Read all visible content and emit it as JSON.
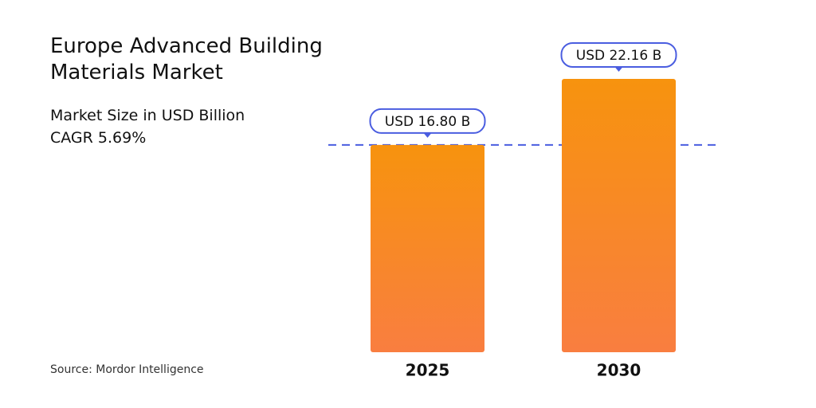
{
  "chart_data": {
    "type": "bar",
    "title": "Europe Advanced Building Materials Market",
    "subtitle": "Market Size in USD Billion",
    "annotation": "CAGR 5.69%",
    "source": "Source: Mordor Intelligence",
    "categories": [
      "2025",
      "2030"
    ],
    "values": [
      16.8,
      22.16
    ],
    "value_labels": [
      "USD 16.80 B",
      "USD 22.16 B"
    ],
    "color": "#f7930e"
  }
}
